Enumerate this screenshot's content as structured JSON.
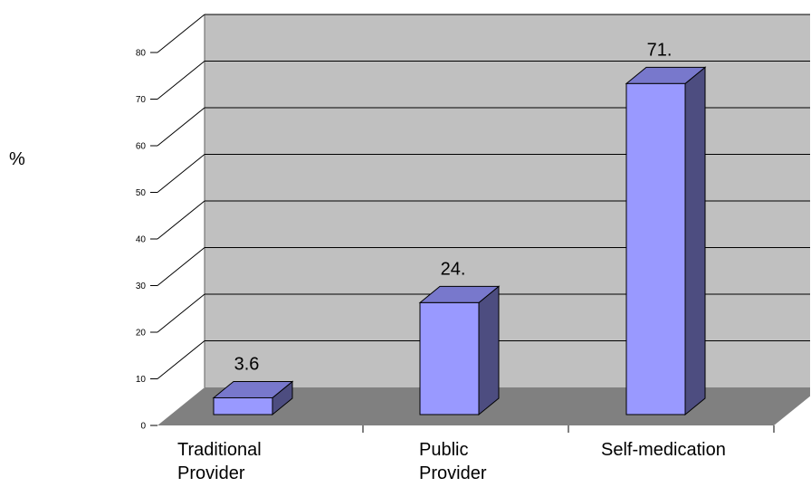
{
  "chart_data": {
    "type": "bar",
    "three_d": true,
    "categories": [
      "Traditional Provider",
      "Public Provider",
      "Self-medication"
    ],
    "values": [
      3.6,
      24,
      71
    ],
    "data_labels": [
      "3.6",
      "24.",
      "71."
    ],
    "xlabel": "",
    "ylabel": "%",
    "ylim": [
      0,
      80
    ],
    "yticks": [
      0,
      10,
      20,
      30,
      40,
      50,
      60,
      70,
      80
    ],
    "grid": true,
    "legend": false,
    "colors": {
      "bar_front": "#9999ff",
      "bar_side": "#4d4d80",
      "bar_top": "#7878cc",
      "back_wall": "#c0c0c0",
      "side_wall": "#ffffff",
      "floor": "#808080",
      "gridline": "#000000"
    }
  }
}
